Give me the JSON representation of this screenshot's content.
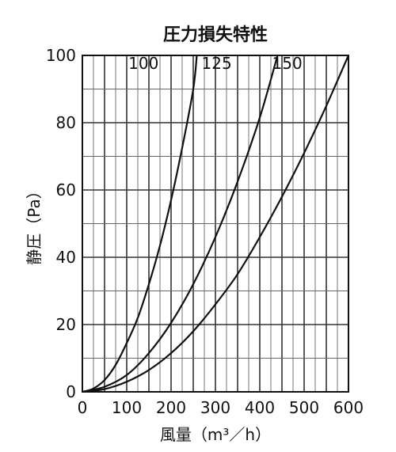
{
  "chart_data": {
    "type": "line",
    "title": "圧力損失特性",
    "xlabel": "風量（m³／h）",
    "ylabel": "静圧（Pa）",
    "xlim": [
      0,
      600
    ],
    "ylim": [
      0,
      100
    ],
    "xticks": [
      "0",
      "100",
      "200",
      "300",
      "400",
      "500",
      "600"
    ],
    "yticks": [
      "0",
      "20",
      "40",
      "60",
      "80",
      "100"
    ],
    "grid": true,
    "series": [
      {
        "name": "100",
        "x": [
          0,
          25,
          50,
          75,
          100,
          125,
          150,
          175,
          200,
          225,
          250,
          258
        ],
        "y": [
          0,
          1,
          3.5,
          8,
          14.5,
          22,
          32,
          43.5,
          57,
          72.5,
          90,
          100
        ],
        "label_pos": {
          "x": 172,
          "y": 96
        }
      },
      {
        "name": "125",
        "x": [
          0,
          50,
          100,
          150,
          200,
          250,
          300,
          350,
          400,
          440
        ],
        "y": [
          0,
          1.5,
          5,
          11.5,
          20.5,
          32,
          46,
          62.5,
          81.5,
          100
        ],
        "label_pos": {
          "x": 337,
          "y": 96
        }
      },
      {
        "name": "150",
        "x": [
          0,
          50,
          100,
          150,
          200,
          250,
          300,
          350,
          400,
          450,
          500,
          550,
          600
        ],
        "y": [
          0,
          0.8,
          3,
          6.5,
          11.5,
          18,
          26,
          35,
          46,
          58,
          71,
          85,
          100
        ],
        "label_pos": {
          "x": 496,
          "y": 96
        }
      }
    ]
  }
}
